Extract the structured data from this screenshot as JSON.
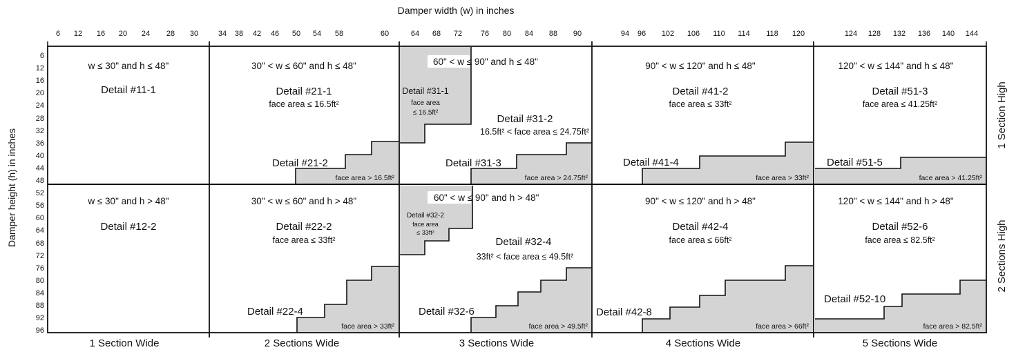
{
  "axes": {
    "x_title": "Damper width (w) in inches",
    "y_title": "Damper height (h) in inches",
    "x_ticks": [
      "6",
      "12",
      "16",
      "20",
      "24",
      "28",
      "30",
      "34",
      "38",
      "42",
      "46",
      "50",
      "54",
      "58",
      "60",
      "64",
      "68",
      "72",
      "76",
      "80",
      "84",
      "88",
      "90",
      "94",
      "96",
      "102",
      "106",
      "110",
      "114",
      "118",
      "120",
      "124",
      "128",
      "132",
      "136",
      "140",
      "144"
    ],
    "y_ticks": [
      "6",
      "12",
      "16",
      "20",
      "24",
      "28",
      "32",
      "36",
      "40",
      "44",
      "48",
      "52",
      "56",
      "60",
      "64",
      "68",
      "72",
      "76",
      "80",
      "84",
      "88",
      "92",
      "96"
    ]
  },
  "columns": [
    "1 Section Wide",
    "2 Sections Wide",
    "3 Sections Wide",
    "4 Sections Wide",
    "5 Sections Wide"
  ],
  "rows": [
    "1 Section High",
    "2 Sections High"
  ],
  "cells": {
    "c1r1": {
      "condition": "w ≤ 30\" and h ≤ 48\"",
      "detail": "Detail #11-1"
    },
    "c2r1": {
      "condition": "30\" < w ≤ 60\" and h ≤ 48\"",
      "detail": "Detail #21-1",
      "face": "face area ≤ 16.5ft²",
      "detail_b": "Detail #21-2",
      "face_b": "face area  > 16.5ft²"
    },
    "c3r1": {
      "condition": "60\" < w ≤ 90\" and h ≤ 48\"",
      "detail_a": "Detail #31-1",
      "face_a1": "face area",
      "face_a2": "≤ 16.5ft²",
      "detail": "Detail #31-2",
      "face": "16.5ft² < face area ≤ 24.75ft²",
      "detail_b": "Detail #31-3",
      "face_b": "face area > 24.75ft²"
    },
    "c4r1": {
      "condition": "90\" < w ≤ 120\" and h ≤ 48\"",
      "detail": "Detail #41-2",
      "face": "face area ≤ 33ft²",
      "detail_b": "Detail #41-4",
      "face_b": "face area > 33ft²"
    },
    "c5r1": {
      "condition": "120\" < w ≤ 144\" and h ≤ 48\"",
      "detail": "Detail #51-3",
      "face": "face area ≤ 41.25ft²",
      "detail_b": "Detail #51-5",
      "face_b": "face area > 41.25ft²"
    },
    "c1r2": {
      "condition": "w ≤ 30\" and h > 48\"",
      "detail": "Detail #12-2"
    },
    "c2r2": {
      "condition": "30\" < w ≤ 60\" and h > 48\"",
      "detail": "Detail #22-2",
      "face": "face area ≤ 33ft²",
      "detail_b": "Detail #22-4",
      "face_b": "face area > 33ft²"
    },
    "c3r2": {
      "condition": "60\" < w ≤ 90\" and h > 48\"",
      "detail_a": "Detail #32-2",
      "face_a1": "face area",
      "face_a2": "≤ 33ft²",
      "detail": "Detail #32-4",
      "face": "33ft² < face area ≤ 49.5ft²",
      "detail_b": "Detail #32-6",
      "face_b": "face area > 49.5ft²"
    },
    "c4r2": {
      "condition": "90\" < w ≤ 120\" and h > 48\"",
      "detail": "Detail #42-4",
      "face": "face area ≤ 66ft²",
      "detail_b": "Detail #42-8",
      "face_b": "face area > 66ft²"
    },
    "c5r2": {
      "condition": "120\" < w ≤ 144\" and h > 48\"",
      "detail": "Detail #52-6",
      "face": "face area ≤ 82.5ft²",
      "detail_b": "Detail #52-10",
      "face_b": "face area > 82.5ft²"
    }
  },
  "colors": {
    "shade": "#d4d4d4",
    "line": "#111111"
  }
}
